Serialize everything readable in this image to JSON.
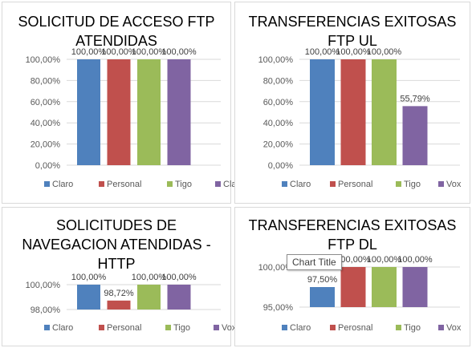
{
  "colors": {
    "claro": "#4f81bd",
    "personal": "#c0504d",
    "tigo": "#9bbb59",
    "vox": "#8064a2",
    "gridline": "#d9d9d9",
    "axis_text": "#595959",
    "label_text": "#404040"
  },
  "tooltip": {
    "text": "Chart Title"
  },
  "chart_data": [
    {
      "type": "bar",
      "title": "SOLICITUD DE ACCESO FTP ATENDIDAS",
      "title_lines": [
        "SOLICITUD DE ACCESO FTP",
        "ATENDIDAS"
      ],
      "categories": [
        "Claro",
        "Personal",
        "Tigo",
        "Claro"
      ],
      "values": [
        100,
        100,
        100,
        100
      ],
      "data_labels": [
        "100,00%",
        "100,00%",
        "100,00%",
        "100,00%"
      ],
      "yticks": [
        "0,00%",
        "20,00%",
        "40,00%",
        "60,00%",
        "80,00%",
        "100,00%"
      ],
      "ylim": [
        0,
        100
      ],
      "legend": [
        "Claro",
        "Personal",
        "Tigo",
        "Claro"
      ],
      "legend_position": "bottom",
      "grid": true
    },
    {
      "type": "bar",
      "title": "TRANSFERENCIAS EXITOSAS FTP UL",
      "title_lines": [
        "TRANSFERENCIAS EXITOSAS",
        "FTP UL"
      ],
      "categories": [
        "Claro",
        "Personal",
        "Tigo",
        "Vox"
      ],
      "values": [
        100,
        100,
        100,
        55.79
      ],
      "data_labels": [
        "100,00%",
        "100,00%",
        "100,00%",
        "55,79%"
      ],
      "yticks": [
        "0,00%",
        "20,00%",
        "40,00%",
        "60,00%",
        "80,00%",
        "100,00%"
      ],
      "ylim": [
        0,
        100
      ],
      "legend": [
        "Claro",
        "Personal",
        "Tigo",
        "Vox"
      ],
      "legend_position": "bottom",
      "grid": true
    },
    {
      "type": "bar",
      "title": "SOLICITUDES DE NAVEGACION ATENDIDAS - HTTP",
      "title_lines": [
        "SOLICITUDES DE",
        "NAVEGACION ATENDIDAS -",
        "HTTP"
      ],
      "categories": [
        "Claro",
        "Personal",
        "Tigo",
        "Vox"
      ],
      "values": [
        100,
        98.72,
        100,
        100
      ],
      "data_labels": [
        "100,00%",
        "98,72%",
        "100,00%",
        "100,00%"
      ],
      "yticks": [
        "98,00%",
        "100,00%"
      ],
      "ylim": [
        98,
        100
      ],
      "legend": [
        "Claro",
        "Personal",
        "Tigo",
        "Vox"
      ],
      "legend_position": "bottom",
      "grid": true
    },
    {
      "type": "bar",
      "title": "TRANSFERENCIAS EXITOSAS FTP DL",
      "title_lines": [
        "TRANSFERENCIAS EXITOSAS",
        "FTP DL"
      ],
      "categories": [
        "Claro",
        "Perosnal",
        "Tigo",
        "Vox"
      ],
      "values": [
        97.5,
        100,
        100,
        100
      ],
      "data_labels": [
        "97,50%",
        "100,00%",
        "100,00%",
        "100,00%"
      ],
      "yticks": [
        "95,00%",
        "100,00%"
      ],
      "ylim": [
        95,
        100
      ],
      "legend": [
        "Claro",
        "Perosnal",
        "Tigo",
        "Vox"
      ],
      "legend_position": "bottom",
      "grid": true
    }
  ]
}
